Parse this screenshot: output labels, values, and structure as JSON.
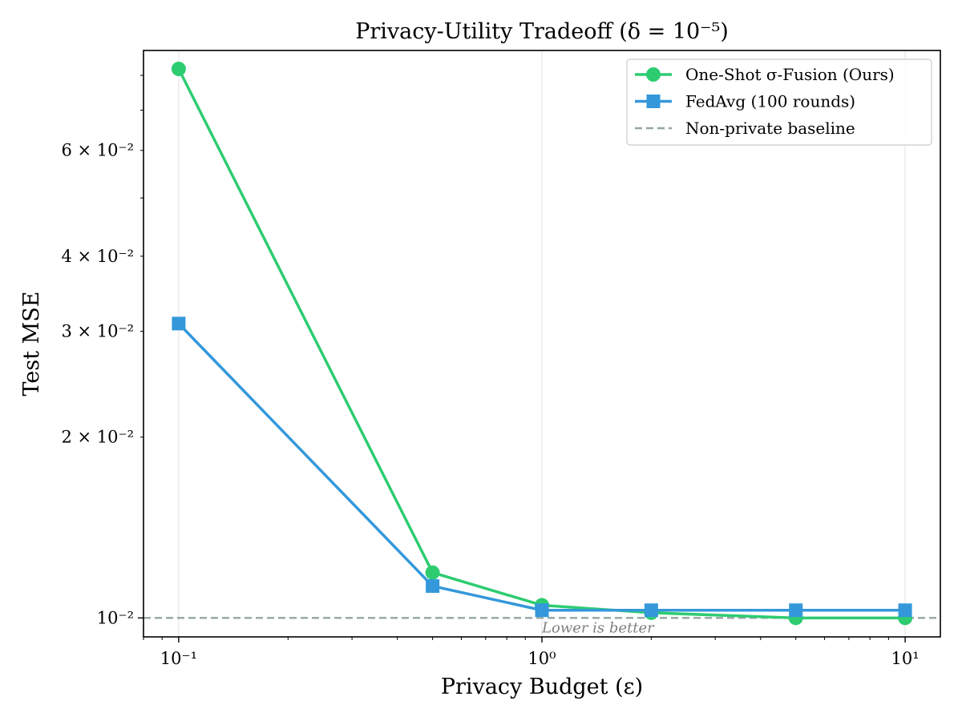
{
  "chart_data": {
    "type": "line",
    "title": "Privacy-Utility Tradeoff (δ = 10⁻⁵)",
    "xlabel": "Privacy Budget (ε)",
    "ylabel": "Test MSE",
    "xscale": "log",
    "yscale": "log",
    "xlim": [
      0.08,
      12.5
    ],
    "ylim": [
      0.0093,
      0.088
    ],
    "x_ticks": [
      {
        "value": 0.1,
        "label": "10⁻¹"
      },
      {
        "value": 1,
        "label": "10⁰"
      },
      {
        "value": 10,
        "label": "10¹"
      }
    ],
    "y_ticks": [
      {
        "value": 0.01,
        "label": "10⁻²"
      },
      {
        "value": 0.02,
        "label": "2 × 10⁻²"
      },
      {
        "value": 0.03,
        "label": "3 × 10⁻²"
      },
      {
        "value": 0.04,
        "label": "4 × 10⁻²"
      },
      {
        "value": 0.06,
        "label": "6 × 10⁻²"
      }
    ],
    "grid": "vertical at major x ticks",
    "legend_position": "top-right",
    "x": [
      0.1,
      0.5,
      1,
      2,
      5,
      10
    ],
    "series": [
      {
        "name": "One-Shot σ-Fusion (Ours)",
        "color": "#2ecc71",
        "marker": "circle",
        "values": [
          0.082,
          0.0119,
          0.0105,
          0.0102,
          0.01,
          0.01
        ]
      },
      {
        "name": "FedAvg (100 rounds)",
        "color": "#3498db",
        "marker": "square",
        "values": [
          0.0309,
          0.0113,
          0.0103,
          0.0103,
          0.0103,
          0.0103
        ]
      }
    ],
    "baseline": {
      "name": "Non-private baseline",
      "value": 0.01,
      "color": "#95a5a6",
      "style": "dashed"
    },
    "annotation": {
      "text": "Lower is better",
      "x": 1,
      "y": 0.01
    }
  }
}
